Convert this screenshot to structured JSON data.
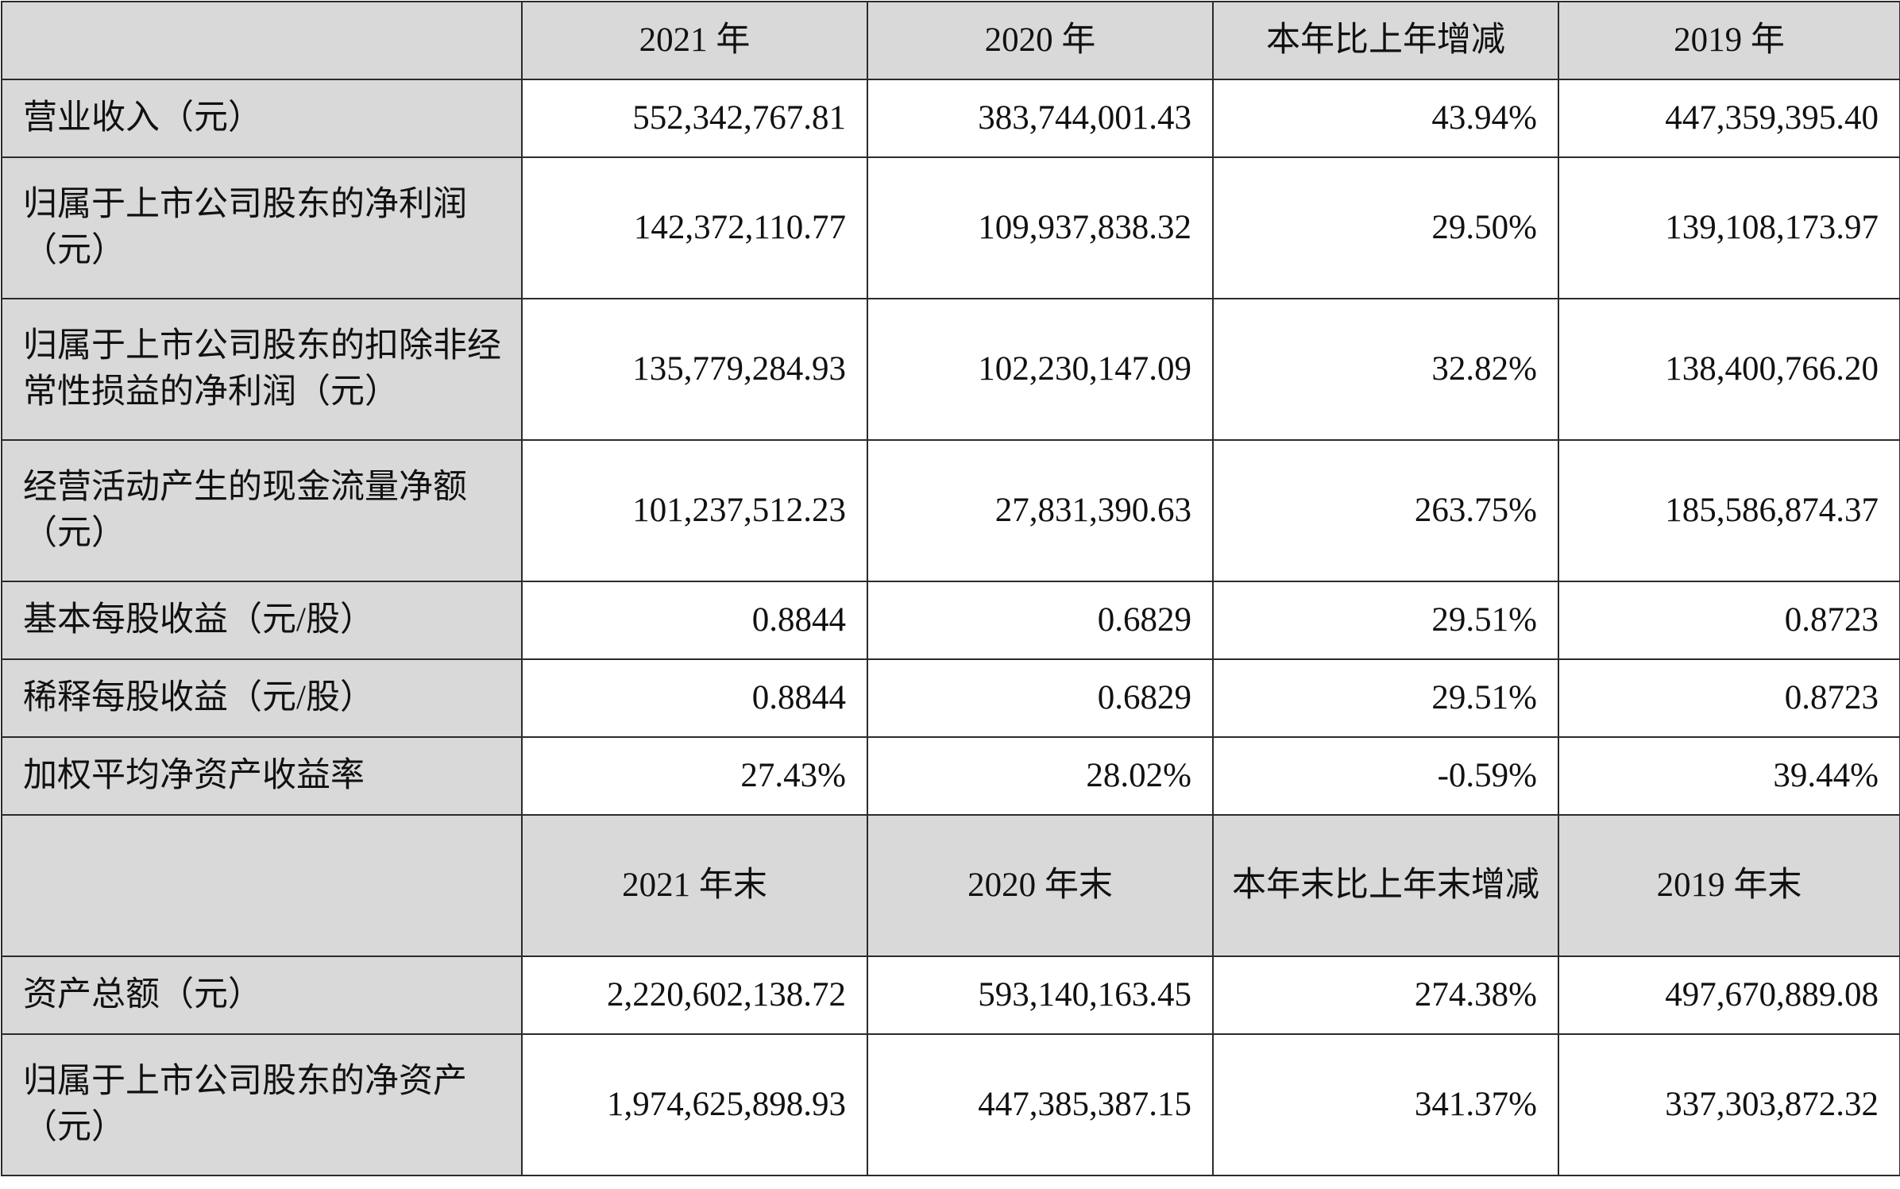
{
  "header1": [
    "2021 年",
    "2020 年",
    "本年比上年增减",
    "2019 年"
  ],
  "rows1": [
    {
      "label": "营业收入（元）",
      "values": [
        "552,342,767.81",
        "383,744,001.43",
        "43.94%",
        "447,359,395.40"
      ]
    },
    {
      "label": "归属于上市公司股东的净利润（元）",
      "values": [
        "142,372,110.77",
        "109,937,838.32",
        "29.50%",
        "139,108,173.97"
      ]
    },
    {
      "label": "归属于上市公司股东的扣除非经常性损益的净利润（元）",
      "values": [
        "135,779,284.93",
        "102,230,147.09",
        "32.82%",
        "138,400,766.20"
      ]
    },
    {
      "label": "经营活动产生的现金流量净额（元）",
      "values": [
        "101,237,512.23",
        "27,831,390.63",
        "263.75%",
        "185,586,874.37"
      ]
    },
    {
      "label": "基本每股收益（元/股）",
      "values": [
        "0.8844",
        "0.6829",
        "29.51%",
        "0.8723"
      ]
    },
    {
      "label": "稀释每股收益（元/股）",
      "values": [
        "0.8844",
        "0.6829",
        "29.51%",
        "0.8723"
      ]
    },
    {
      "label": "加权平均净资产收益率",
      "values": [
        "27.43%",
        "28.02%",
        "-0.59%",
        "39.44%"
      ]
    }
  ],
  "header2": [
    "2021 年末",
    "2020 年末",
    "本年末比上年末增减",
    "2019 年末"
  ],
  "rows2": [
    {
      "label": "资产总额（元）",
      "values": [
        "2,220,602,138.72",
        "593,140,163.45",
        "274.38%",
        "497,670,889.08"
      ]
    },
    {
      "label": "归属于上市公司股东的净资产（元）",
      "values": [
        "1,974,625,898.93",
        "447,385,387.15",
        "341.37%",
        "337,303,872.32"
      ]
    }
  ]
}
